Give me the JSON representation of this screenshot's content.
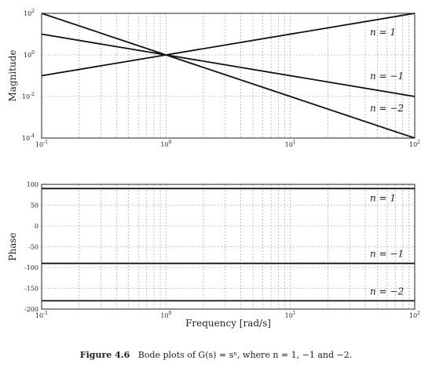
{
  "chart_data": [
    {
      "type": "line",
      "ylabel": "Magnitude",
      "xscale": "log",
      "yscale": "log",
      "xlim": [
        0.1,
        100
      ],
      "ylim": [
        0.0001,
        100
      ],
      "grid": true,
      "xticks": [
        {
          "base": "10",
          "exp": "-1"
        },
        {
          "base": "10",
          "exp": "0"
        },
        {
          "base": "10",
          "exp": "1"
        },
        {
          "base": "10",
          "exp": "2"
        }
      ],
      "yticks": [
        {
          "base": "10",
          "exp": "-4",
          "v": 0.0001
        },
        {
          "base": "10",
          "exp": "-2",
          "v": 0.01
        },
        {
          "base": "10",
          "exp": "0",
          "v": 1
        },
        {
          "base": "10",
          "exp": "2",
          "v": 100
        }
      ],
      "series": [
        {
          "name": "n = 1",
          "x": [
            0.1,
            100
          ],
          "values": [
            0.1,
            100
          ]
        },
        {
          "name": "n = −1",
          "x": [
            0.1,
            100
          ],
          "values": [
            10,
            0.01
          ]
        },
        {
          "name": "n = −2",
          "x": [
            0.1,
            100
          ],
          "values": [
            100,
            0.0001
          ]
        }
      ]
    },
    {
      "type": "line",
      "xlabel": "Frequency [rad/s]",
      "ylabel": "Phase",
      "xscale": "log",
      "xlim": [
        0.1,
        100
      ],
      "ylim": [
        -200,
        100
      ],
      "grid": true,
      "xticks": [
        {
          "base": "10",
          "exp": "-1"
        },
        {
          "base": "10",
          "exp": "0"
        },
        {
          "base": "10",
          "exp": "1"
        },
        {
          "base": "10",
          "exp": "2"
        }
      ],
      "yticks": [
        "100",
        "50",
        "0",
        "-50",
        "-100",
        "-150",
        "-200"
      ],
      "series": [
        {
          "name": "n = 1",
          "x": [
            0.1,
            100
          ],
          "values": [
            90,
            90
          ]
        },
        {
          "name": "n = −1",
          "x": [
            0.1,
            100
          ],
          "values": [
            -90,
            -90
          ]
        },
        {
          "name": "n = −2",
          "x": [
            0.1,
            100
          ],
          "values": [
            -180,
            -180
          ]
        }
      ]
    }
  ],
  "caption": {
    "label": "Figure 4.6",
    "text": "Bode plots of G(s) = sⁿ, where n = 1, −1 and −2."
  }
}
